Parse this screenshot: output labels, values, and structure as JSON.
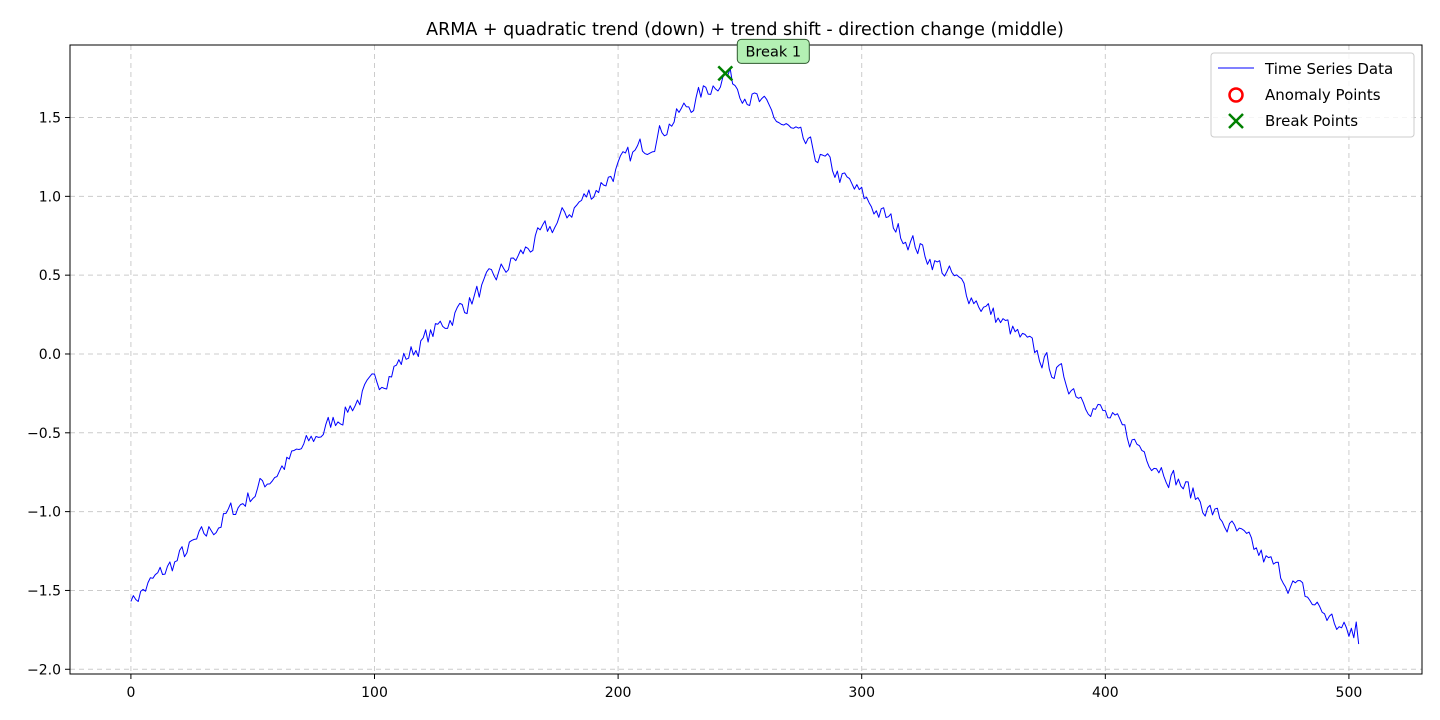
{
  "chart_data": {
    "type": "line",
    "title": "ARMA + quadratic trend (down) + trend shift - direction change (middle)",
    "xlabel": "",
    "ylabel": "",
    "xlim": [
      -25,
      530
    ],
    "ylim": [
      -2.03,
      1.96
    ],
    "xticks": [
      0,
      100,
      200,
      300,
      400,
      500
    ],
    "yticks": [
      -2.0,
      -1.5,
      -1.0,
      -0.5,
      0.0,
      0.5,
      1.0,
      1.5
    ],
    "xtick_labels": [
      "0",
      "100",
      "200",
      "300",
      "400",
      "500"
    ],
    "ytick_labels": [
      "−2.0",
      "−1.5",
      "−1.0",
      "−0.5",
      "0.0",
      "0.5",
      "1.0",
      "1.5"
    ],
    "grid": true,
    "legend_position": "top-right",
    "legend": [
      "Time Series Data",
      "Anomaly Points",
      "Break Points"
    ],
    "series": [
      {
        "name": "Time Series Data",
        "color": "#0000ff",
        "n_points": 505,
        "start": [
          0,
          -1.57
        ],
        "peak": [
          244,
          1.78
        ],
        "end": [
          504,
          -1.84
        ],
        "noise_amplitude": 0.06,
        "end_values": [
          -1.74,
          -1.8,
          -1.7,
          -1.84
        ]
      }
    ],
    "anomaly_points": [],
    "break_points": [
      {
        "x": 244,
        "y": 1.78,
        "label": "Break 1",
        "color": "#008000"
      }
    ],
    "colors": {
      "line": "#0000ff",
      "anomaly": "#ff0000",
      "break": "#008000",
      "annotation_fill": "#b3f0b3",
      "grid": "#cccccc"
    }
  }
}
